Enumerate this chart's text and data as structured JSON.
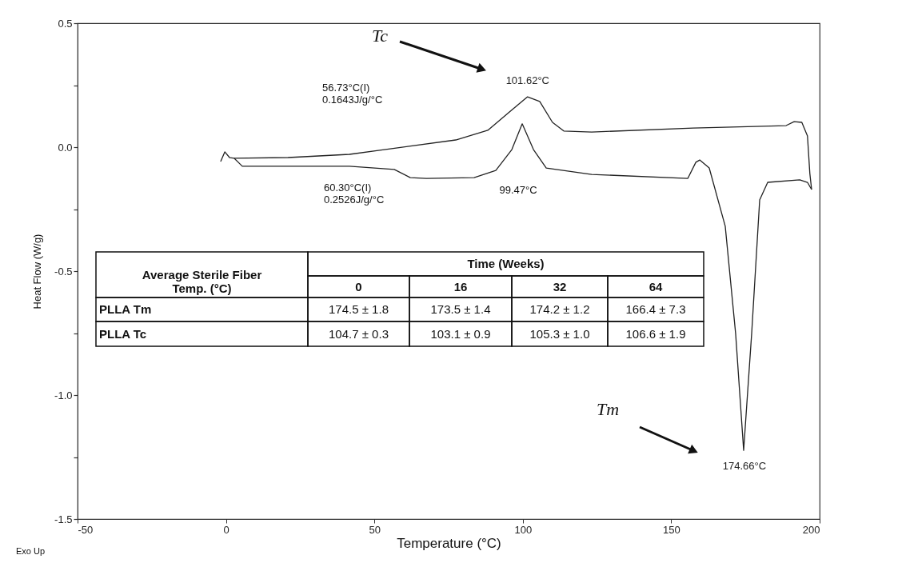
{
  "chart_data": {
    "type": "line",
    "xlabel": "Temperature (°C)",
    "ylabel": "Heat Flow (W/g)",
    "xlim": [
      -50,
      200
    ],
    "xticks": [
      -50,
      0,
      50,
      100,
      150,
      200
    ],
    "ylim": [
      -1.5,
      0.5
    ],
    "yticks": [
      -1.5,
      {
        "value": -1.25,
        "label": null
      },
      -0.5,
      {
        "value": -1.0,
        "label": "-1.0"
      },
      {
        "value": -0.75,
        "label": null
      },
      {
        "value": -0.25,
        "label": null
      },
      {
        "value": 0,
        "label": "0.0"
      },
      {
        "value": 0.25,
        "label": null
      },
      0.5
    ],
    "grid": false,
    "marker": "none",
    "line_style": "solid",
    "series": [
      {
        "color": "#222222",
        "x": [
          -1.8,
          -0.4,
          1.2,
          2.8,
          20.9,
          41.6,
          51.3,
          57.8,
          77.4,
          88.2,
          95.5,
          101.6,
          105.7,
          110.0,
          113.8,
          123.2,
          157.4,
          188.7,
          191.4,
          194.0,
          195.9,
          196.7,
          197.3
        ],
        "values": [
          -0.058,
          -0.019,
          -0.042,
          -0.045,
          -0.042,
          -0.029,
          -0.013,
          -0.003,
          0.029,
          0.068,
          0.142,
          0.203,
          0.184,
          0.1,
          0.065,
          0.061,
          0.077,
          0.087,
          0.103,
          0.1,
          0.045,
          -0.106,
          -0.171
        ]
      },
      {
        "color": "#222222",
        "x": [
          2.8,
          5.5,
          41.6,
          56.7,
          62.1,
          67.5,
          83.6,
          90.9,
          96.3,
          99.8,
          103.6,
          107.9,
          123.2,
          155.6,
          158.3,
          159.6,
          162.8,
          168.2,
          171.7,
          174.4,
          177.1,
          179.8,
          182.5,
          193.3,
          195.9,
          197.3
        ],
        "values": [
          -0.045,
          -0.077,
          -0.077,
          -0.09,
          -0.123,
          -0.126,
          -0.123,
          -0.094,
          -0.01,
          0.094,
          -0.01,
          -0.084,
          -0.11,
          -0.126,
          -0.061,
          -0.052,
          -0.084,
          -0.319,
          -0.752,
          -1.223,
          -0.752,
          -0.213,
          -0.142,
          -0.132,
          -0.142,
          -0.171
        ]
      }
    ],
    "annotations": [
      {
        "text": "101.62°C",
        "x": 101.62,
        "y": 0.203
      },
      {
        "text": "174.66°C",
        "x": 174.66,
        "y": -1.223
      },
      "56.73°C(I)\n0.1643J/g/°C",
      "60.30°C(I)\n0.2526J/g/°C",
      "99.47°C",
      "Tc",
      "Tm",
      "Exo Up",
      "Average Sterile Fiber\nTemp. (°C)",
      "Time (Weeks)",
      "0",
      "16",
      "32",
      "64",
      "PLLA Tm",
      "174.5 ± 1.8",
      "173.5 ± 1.4",
      "174.2 ± 1.2",
      "166.4 ± 7.3",
      "PLLA Tc",
      "104.7 ± 0.3",
      "103.1 ± 0.9",
      "105.3 ± 1.0",
      "106.6 ± 1.9"
    ]
  }
}
